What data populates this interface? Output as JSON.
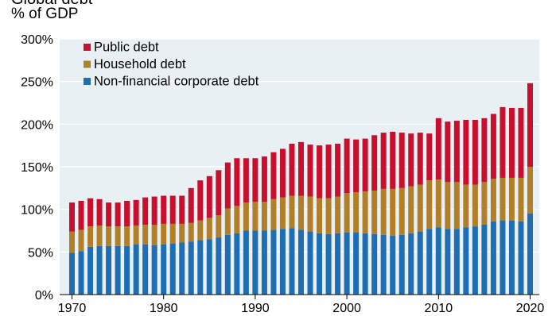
{
  "chart_data": {
    "type": "bar",
    "stacked": true,
    "title": "Global debt",
    "ylabel": "% of GDP",
    "xlabel": "",
    "ylim": [
      0,
      300
    ],
    "xlim": [
      1970,
      2021
    ],
    "yticks": [
      "0%",
      "50%",
      "100%",
      "150%",
      "200%",
      "250%",
      "300%"
    ],
    "xticks": [
      "1970",
      "1980",
      "1990",
      "2000",
      "2010",
      "2020"
    ],
    "grid": true,
    "legend_position": "top-left",
    "colors": {
      "public": "#c8102e",
      "household": "#b07f28",
      "corporate": "#1f6eb4",
      "plot_background": "#e8f0f3",
      "grid": "#ffffff"
    },
    "categories": [
      1970,
      1971,
      1972,
      1973,
      1974,
      1975,
      1976,
      1977,
      1978,
      1979,
      1980,
      1981,
      1982,
      1983,
      1984,
      1985,
      1986,
      1987,
      1988,
      1989,
      1990,
      1991,
      1992,
      1993,
      1994,
      1995,
      1996,
      1997,
      1998,
      1999,
      2000,
      2001,
      2002,
      2003,
      2004,
      2005,
      2006,
      2007,
      2008,
      2009,
      2010,
      2011,
      2012,
      2013,
      2014,
      2015,
      2016,
      2017,
      2018,
      2019,
      2020
    ],
    "series": [
      {
        "name": "Non-financial corporate debt",
        "key": "corporate",
        "values": [
          49,
          51,
          56,
          57,
          57,
          57,
          57,
          59,
          59,
          58,
          59,
          60,
          61,
          62,
          64,
          65,
          67,
          70,
          72,
          75,
          75,
          75,
          76,
          77,
          78,
          76,
          74,
          72,
          71,
          72,
          73,
          73,
          72,
          71,
          70,
          69,
          70,
          72,
          74,
          77,
          79,
          77,
          77,
          79,
          80,
          82,
          86,
          87,
          87,
          86,
          95
        ]
      },
      {
        "name": "Household debt",
        "key": "household",
        "values": [
          25,
          25,
          24,
          24,
          23,
          23,
          23,
          22,
          23,
          24,
          24,
          23,
          22,
          22,
          23,
          25,
          26,
          31,
          32,
          33,
          34,
          34,
          36,
          37,
          38,
          40,
          41,
          41,
          42,
          43,
          46,
          47,
          49,
          51,
          54,
          55,
          55,
          55,
          55,
          57,
          56,
          55,
          55,
          50,
          49,
          50,
          50,
          50,
          50,
          51,
          55
        ]
      },
      {
        "name": "Public debt",
        "key": "public",
        "values": [
          34,
          34,
          33,
          31,
          28,
          28,
          30,
          30,
          32,
          33,
          33,
          33,
          33,
          41,
          47,
          49,
          53,
          54,
          56,
          52,
          51,
          53,
          55,
          57,
          61,
          63,
          61,
          62,
          63,
          62,
          64,
          62,
          62,
          65,
          66,
          67,
          65,
          62,
          61,
          55,
          72,
          71,
          72,
          76,
          76,
          75,
          76,
          83,
          82,
          82,
          98
        ]
      }
    ]
  },
  "page": {
    "title_text": "Global debt",
    "unit_label": "% of GDP"
  }
}
